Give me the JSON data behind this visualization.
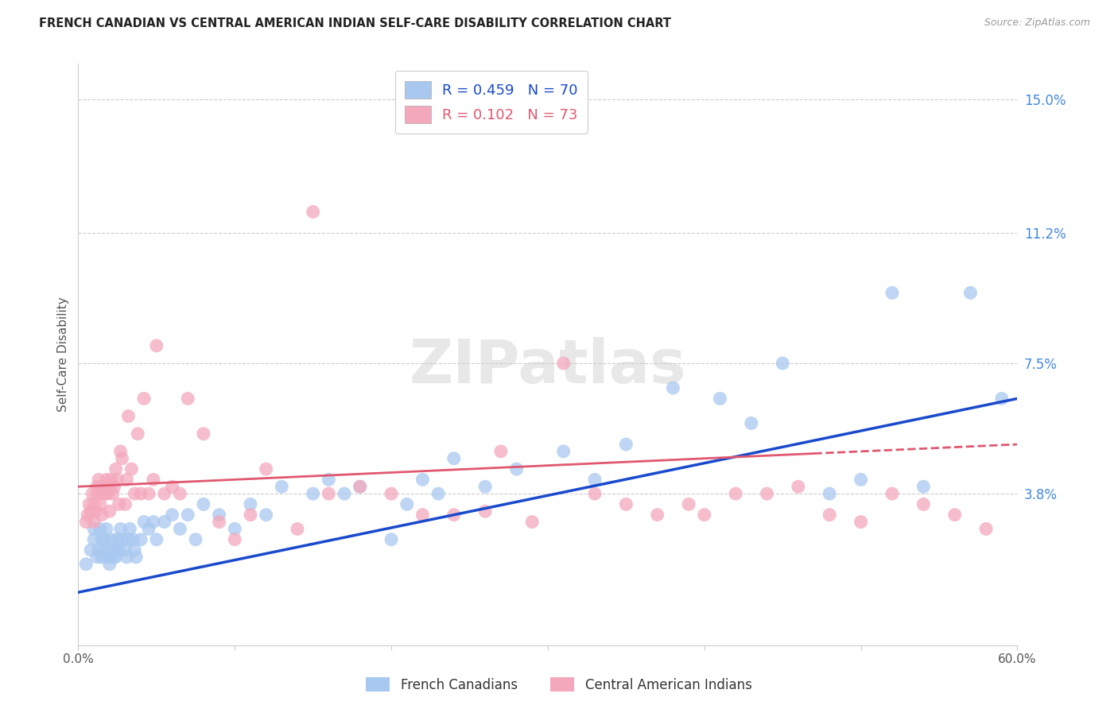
{
  "title": "FRENCH CANADIAN VS CENTRAL AMERICAN INDIAN SELF-CARE DISABILITY CORRELATION CHART",
  "source": "Source: ZipAtlas.com",
  "ylabel": "Self-Care Disability",
  "xlim": [
    0.0,
    0.6
  ],
  "ylim": [
    -0.005,
    0.16
  ],
  "yticks": [
    0.038,
    0.075,
    0.112,
    0.15
  ],
  "ytick_labels": [
    "3.8%",
    "7.5%",
    "11.2%",
    "15.0%"
  ],
  "xticks": [
    0.0,
    0.1,
    0.2,
    0.3,
    0.4,
    0.5,
    0.6
  ],
  "xtick_labels": [
    "0.0%",
    "",
    "",
    "",
    "",
    "",
    "60.0%"
  ],
  "blue_R": 0.459,
  "blue_N": 70,
  "pink_R": 0.102,
  "pink_N": 73,
  "blue_color": "#A8C8F0",
  "pink_color": "#F4A8BC",
  "blue_line_color": "#1A4ACC",
  "pink_line_color": "#E05870",
  "legend_label_blue": "French Canadians",
  "legend_label_pink": "Central American Indians",
  "watermark": "ZIPatlas",
  "background_color": "#FFFFFF",
  "blue_x": [
    0.005,
    0.008,
    0.01,
    0.01,
    0.012,
    0.013,
    0.014,
    0.015,
    0.015,
    0.016,
    0.017,
    0.018,
    0.019,
    0.02,
    0.02,
    0.021,
    0.022,
    0.023,
    0.024,
    0.025,
    0.026,
    0.027,
    0.028,
    0.03,
    0.031,
    0.032,
    0.033,
    0.035,
    0.036,
    0.037,
    0.04,
    0.042,
    0.045,
    0.048,
    0.05,
    0.055,
    0.06,
    0.065,
    0.07,
    0.075,
    0.08,
    0.09,
    0.1,
    0.11,
    0.12,
    0.13,
    0.15,
    0.16,
    0.17,
    0.18,
    0.2,
    0.21,
    0.22,
    0.23,
    0.24,
    0.26,
    0.28,
    0.31,
    0.33,
    0.35,
    0.38,
    0.41,
    0.43,
    0.45,
    0.48,
    0.5,
    0.52,
    0.54,
    0.57,
    0.59
  ],
  "blue_y": [
    0.018,
    0.022,
    0.025,
    0.028,
    0.02,
    0.022,
    0.028,
    0.02,
    0.025,
    0.022,
    0.025,
    0.028,
    0.02,
    0.018,
    0.022,
    0.025,
    0.02,
    0.022,
    0.02,
    0.025,
    0.022,
    0.028,
    0.025,
    0.022,
    0.02,
    0.025,
    0.028,
    0.025,
    0.022,
    0.02,
    0.025,
    0.03,
    0.028,
    0.03,
    0.025,
    0.03,
    0.032,
    0.028,
    0.032,
    0.025,
    0.035,
    0.032,
    0.028,
    0.035,
    0.032,
    0.04,
    0.038,
    0.042,
    0.038,
    0.04,
    0.025,
    0.035,
    0.042,
    0.038,
    0.048,
    0.04,
    0.045,
    0.05,
    0.042,
    0.052,
    0.068,
    0.065,
    0.058,
    0.075,
    0.038,
    0.042,
    0.095,
    0.04,
    0.095,
    0.065
  ],
  "pink_x": [
    0.005,
    0.006,
    0.007,
    0.008,
    0.009,
    0.01,
    0.01,
    0.011,
    0.012,
    0.012,
    0.013,
    0.014,
    0.015,
    0.015,
    0.016,
    0.017,
    0.018,
    0.019,
    0.02,
    0.02,
    0.021,
    0.022,
    0.023,
    0.024,
    0.025,
    0.026,
    0.027,
    0.028,
    0.03,
    0.031,
    0.032,
    0.034,
    0.036,
    0.038,
    0.04,
    0.042,
    0.045,
    0.048,
    0.05,
    0.055,
    0.06,
    0.065,
    0.07,
    0.08,
    0.09,
    0.1,
    0.11,
    0.12,
    0.14,
    0.15,
    0.16,
    0.18,
    0.2,
    0.22,
    0.24,
    0.26,
    0.27,
    0.29,
    0.31,
    0.33,
    0.35,
    0.37,
    0.39,
    0.4,
    0.42,
    0.44,
    0.46,
    0.48,
    0.5,
    0.52,
    0.54,
    0.56,
    0.58
  ],
  "pink_y": [
    0.03,
    0.032,
    0.035,
    0.033,
    0.038,
    0.03,
    0.035,
    0.033,
    0.038,
    0.04,
    0.042,
    0.035,
    0.032,
    0.038,
    0.04,
    0.038,
    0.042,
    0.038,
    0.033,
    0.04,
    0.042,
    0.038,
    0.04,
    0.045,
    0.042,
    0.035,
    0.05,
    0.048,
    0.035,
    0.042,
    0.06,
    0.045,
    0.038,
    0.055,
    0.038,
    0.065,
    0.038,
    0.042,
    0.08,
    0.038,
    0.04,
    0.038,
    0.065,
    0.055,
    0.03,
    0.025,
    0.032,
    0.045,
    0.028,
    0.118,
    0.038,
    0.04,
    0.038,
    0.032,
    0.032,
    0.033,
    0.05,
    0.03,
    0.075,
    0.038,
    0.035,
    0.032,
    0.035,
    0.032,
    0.038,
    0.038,
    0.04,
    0.032,
    0.03,
    0.038,
    0.035,
    0.032,
    0.028
  ]
}
